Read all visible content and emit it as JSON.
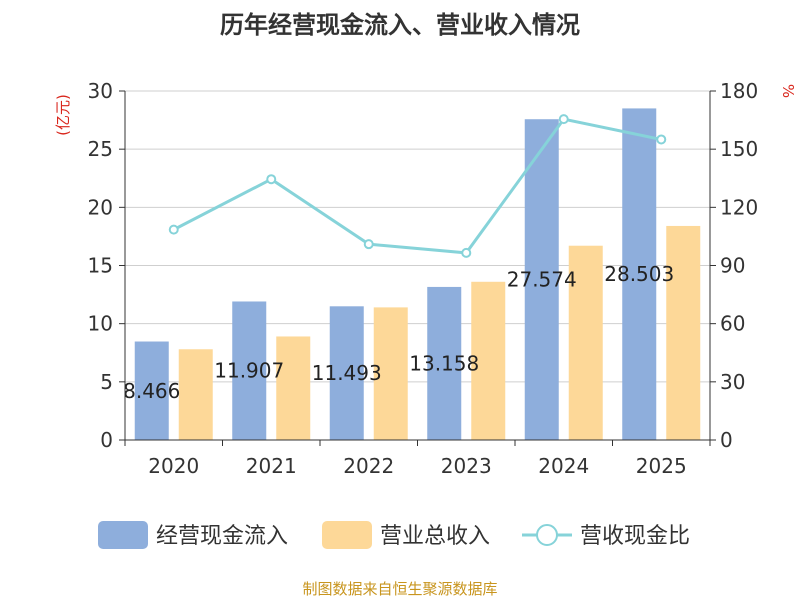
{
  "chart_data": {
    "type": "bar",
    "title": "历年经营现金流入、营业收入情况",
    "categories": [
      "2020",
      "2021",
      "2022",
      "2023",
      "2024",
      "2025"
    ],
    "y_left": {
      "label": "(亿元)",
      "ylim": [
        0,
        30
      ],
      "ticks": [
        0,
        5,
        10,
        15,
        20,
        25,
        30
      ]
    },
    "y_right": {
      "label": "%",
      "ylim": [
        0,
        180
      ],
      "ticks": [
        0,
        30,
        60,
        90,
        120,
        150,
        180
      ]
    },
    "series": [
      {
        "name": "经营现金流入",
        "type": "bar",
        "axis": "left",
        "color": "#8eaedc",
        "values": [
          8.466,
          11.907,
          11.493,
          13.158,
          27.574,
          28.503
        ],
        "labels": [
          "8.466",
          "11.907",
          "11.493",
          "13.158",
          "27.574",
          "28.503"
        ]
      },
      {
        "name": "营业总收入",
        "type": "bar",
        "axis": "left",
        "color": "#fdd898",
        "values": [
          7.8,
          8.9,
          11.4,
          13.6,
          16.7,
          18.4
        ]
      },
      {
        "name": "营收现金比",
        "type": "line",
        "axis": "right",
        "color": "#86d3d9",
        "values": [
          108.5,
          134.5,
          101.0,
          96.5,
          165.5,
          155.0
        ]
      }
    ],
    "legend_position": "bottom",
    "grid": true
  },
  "source": "制图数据来自恒生聚源数据库"
}
